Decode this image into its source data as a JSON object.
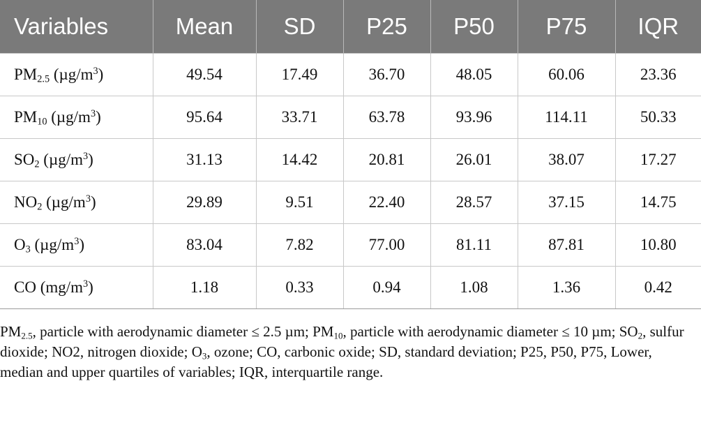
{
  "table": {
    "headers": [
      "Variables",
      "Mean",
      "SD",
      "P25",
      "P50",
      "P75",
      "IQR"
    ],
    "rows": [
      {
        "var_main": "PM",
        "var_sub": "2.5",
        "unit_pre": " (µg/m",
        "unit_sup": "3",
        "unit_post": ")",
        "values": [
          "49.54",
          "17.49",
          "36.70",
          "48.05",
          "60.06",
          "23.36"
        ]
      },
      {
        "var_main": "PM",
        "var_sub": "10",
        "unit_pre": " (µg/m",
        "unit_sup": "3",
        "unit_post": ")",
        "values": [
          "95.64",
          "33.71",
          "63.78",
          "93.96",
          "114.11",
          "50.33"
        ]
      },
      {
        "var_main": "SO",
        "var_sub": "2",
        "unit_pre": " (µg/m",
        "unit_sup": "3",
        "unit_post": ")",
        "values": [
          "31.13",
          "14.42",
          "20.81",
          "26.01",
          "38.07",
          "17.27"
        ]
      },
      {
        "var_main": "NO",
        "var_sub": "2",
        "unit_pre": " (µg/m",
        "unit_sup": "3",
        "unit_post": ")",
        "values": [
          "29.89",
          "9.51",
          "22.40",
          "28.57",
          "37.15",
          "14.75"
        ]
      },
      {
        "var_main": "O",
        "var_sub": "3",
        "unit_pre": " (µg/m",
        "unit_sup": "3",
        "unit_post": ")",
        "values": [
          "83.04",
          "7.82",
          "77.00",
          "81.11",
          "87.81",
          "10.80"
        ]
      },
      {
        "var_main": "CO",
        "var_sub": "",
        "unit_pre": " (mg/m",
        "unit_sup": "3",
        "unit_post": ")",
        "values": [
          "1.18",
          "0.33",
          "0.94",
          "1.08",
          "1.36",
          "0.42"
        ]
      }
    ]
  },
  "footnote": {
    "t1": "PM",
    "s1": "2.5",
    "t2": ", particle with aerodynamic diameter ≤ 2.5 µm; PM",
    "s2": "10",
    "t3": ", particle with aerodynamic diameter ≤ 10 µm; SO",
    "s3": "2",
    "t4": ", sulfur dioxide; NO2, nitrogen dioxide; O",
    "s4": "3",
    "t5": ", ozone; CO, carbonic oxide; SD, standard deviation; P25, P50, P75, Lower, median and upper quartiles of variables; IQR, interquartile range."
  },
  "colors": {
    "header_bg": "#7a7a7a",
    "header_text": "#ffffff",
    "grid_line": "#c8c8c8",
    "body_text": "#111111"
  }
}
